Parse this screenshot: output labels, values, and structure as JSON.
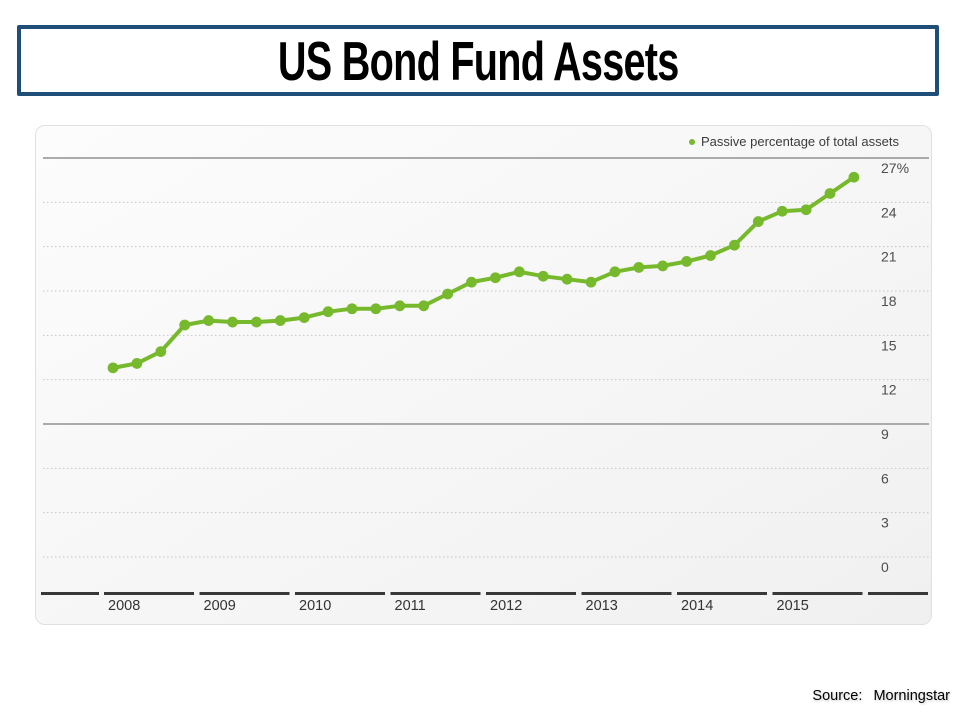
{
  "slide": {
    "title": "US Bond Fund Assets"
  },
  "source": {
    "label": "Source:",
    "value": "Morningstar"
  },
  "colors": {
    "title_border": "#1f4e79",
    "accent_green": "#77b92c",
    "axis_dark": "#383838"
  },
  "chart_data": {
    "type": "line",
    "title": "US Bond Fund Assets",
    "legend_label": "Passive percentage of total assets",
    "legend_color": "#77b92c",
    "legend_position": "top-right",
    "unit": "%",
    "ylim": [
      0,
      27
    ],
    "grid": "horizontal; dotted lines every 3, solid lines at 27 and 9",
    "y_ticks": [
      {
        "label": "27%",
        "value": 27,
        "solid": true
      },
      {
        "label": "24",
        "value": 24,
        "solid": false
      },
      {
        "label": "21",
        "value": 21,
        "solid": false
      },
      {
        "label": "18",
        "value": 18,
        "solid": false
      },
      {
        "label": "15",
        "value": 15,
        "solid": false
      },
      {
        "label": "12",
        "value": 12,
        "solid": false
      },
      {
        "label": "9",
        "value": 9,
        "solid": true
      },
      {
        "label": "6",
        "value": 6,
        "solid": false
      },
      {
        "label": "3",
        "value": 3,
        "solid": false
      },
      {
        "label": "0",
        "value": 0,
        "solid": false
      }
    ],
    "x_tick_labels": [
      "2008",
      "2009",
      "2010",
      "2011",
      "2012",
      "2013",
      "2014",
      "2015"
    ],
    "x_frequency": "quarterly",
    "categories": [
      "2008 Q1",
      "2008 Q2",
      "2008 Q3",
      "2008 Q4",
      "2009 Q1",
      "2009 Q2",
      "2009 Q3",
      "2009 Q4",
      "2010 Q1",
      "2010 Q2",
      "2010 Q3",
      "2010 Q4",
      "2011 Q1",
      "2011 Q2",
      "2011 Q3",
      "2011 Q4",
      "2012 Q1",
      "2012 Q2",
      "2012 Q3",
      "2012 Q4",
      "2013 Q1",
      "2013 Q2",
      "2013 Q3",
      "2013 Q4",
      "2014 Q1",
      "2014 Q2",
      "2014 Q3",
      "2014 Q4",
      "2015 Q1",
      "2015 Q2",
      "2015 Q3",
      "2015 Q4"
    ],
    "series": [
      {
        "name": "Passive percentage of total assets",
        "values": [
          12.8,
          13.1,
          13.9,
          15.7,
          16.0,
          15.9,
          15.9,
          16.0,
          16.2,
          16.6,
          16.8,
          16.8,
          17.0,
          17.0,
          17.8,
          18.6,
          18.9,
          19.3,
          19.0,
          18.8,
          18.6,
          19.3,
          19.6,
          19.7,
          20.0,
          20.4,
          21.1,
          22.7,
          23.4,
          23.5,
          24.6,
          25.7
        ]
      }
    ]
  }
}
